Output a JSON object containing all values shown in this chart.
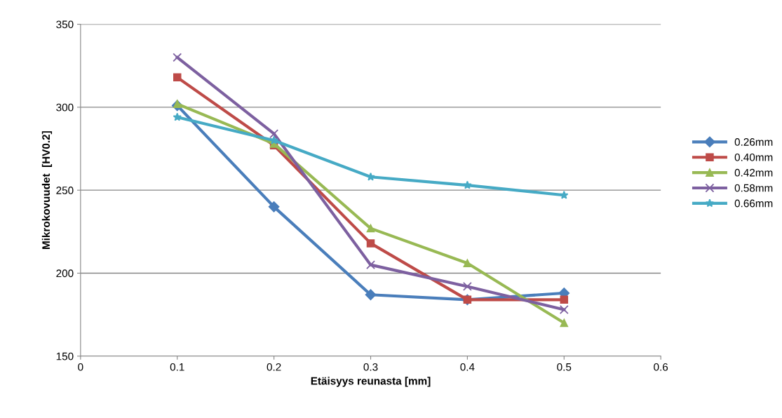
{
  "chart_data": {
    "type": "line",
    "xlabel": "Etäisyys reunasta [mm]",
    "ylabel": "Mikrokovuudet  [HV0.2]",
    "x": [
      0.1,
      0.2,
      0.3,
      0.4,
      0.5
    ],
    "series": [
      {
        "name": "0.26mm",
        "color": "#4a7ebb",
        "marker": "diamond",
        "values": [
          301,
          240,
          187,
          184,
          188
        ]
      },
      {
        "name": "0.40mm",
        "color": "#be4b48",
        "marker": "square",
        "values": [
          318,
          277,
          218,
          184,
          184
        ]
      },
      {
        "name": "0.42mm",
        "color": "#98b954",
        "marker": "triangle",
        "values": [
          302,
          278,
          227,
          206,
          170
        ]
      },
      {
        "name": "0.58mm",
        "color": "#7d60a0",
        "marker": "cross",
        "values": [
          330,
          284,
          205,
          192,
          178
        ]
      },
      {
        "name": "0.66mm",
        "color": "#46aac5",
        "marker": "star",
        "values": [
          294,
          280,
          258,
          253,
          247
        ]
      }
    ],
    "xlim": [
      0,
      0.6
    ],
    "xticks": [
      0,
      0.1,
      0.2,
      0.3,
      0.4,
      0.5,
      0.6
    ],
    "ylim": [
      150,
      350
    ],
    "yticks": [
      150,
      200,
      250,
      300,
      350
    ],
    "grid": "y",
    "legend": "right",
    "line_style": "solid"
  }
}
